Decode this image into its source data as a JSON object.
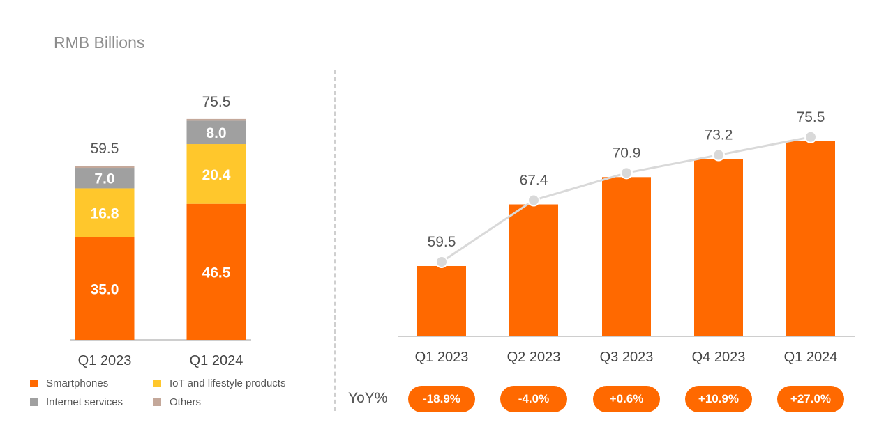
{
  "unit_label": "RMB Billions",
  "colors": {
    "smartphones": "#ff6900",
    "iot": "#ffc72c",
    "internet": "#a0a0a0",
    "others": "#c4a89a",
    "line": "#d9d9d9",
    "text": "#555555"
  },
  "chart_data": [
    {
      "type": "stacked_bar",
      "title": "RMB Billions",
      "categories": [
        "Q1 2023",
        "Q1 2024"
      ],
      "series": [
        {
          "name": "Smartphones",
          "color_key": "smartphones",
          "values": [
            35.0,
            46.5
          ],
          "labels": [
            "35.0",
            "46.5"
          ]
        },
        {
          "name": "IoT and lifestyle products",
          "color_key": "iot",
          "values": [
            16.8,
            20.4
          ],
          "labels": [
            "16.8",
            "20.4"
          ]
        },
        {
          "name": "Internet services",
          "color_key": "internet",
          "values": [
            7.0,
            8.0
          ],
          "labels": [
            "7.0",
            "8.0"
          ]
        },
        {
          "name": "Others",
          "color_key": "others",
          "values": [
            0.7,
            0.6
          ],
          "labels": [
            "",
            ""
          ]
        }
      ],
      "totals": [
        59.5,
        75.5
      ],
      "total_labels": [
        "59.5",
        "75.5"
      ],
      "legend": [
        "Smartphones",
        "IoT and lifestyle products",
        "Internet services",
        "Others"
      ],
      "ylim": [
        0,
        80
      ]
    },
    {
      "type": "bar_line",
      "categories": [
        "Q1 2023",
        "Q2 2023",
        "Q3 2023",
        "Q4 2023",
        "Q1 2024"
      ],
      "values": [
        59.5,
        67.4,
        70.9,
        73.2,
        75.5
      ],
      "value_labels": [
        "59.5",
        "67.4",
        "70.9",
        "73.2",
        "75.5"
      ],
      "ylim": [
        50,
        80
      ],
      "yoy_title": "YoY%",
      "yoy": [
        "-18.9%",
        "-4.0%",
        "+0.6%",
        "+10.9%",
        "+27.0%"
      ]
    }
  ]
}
